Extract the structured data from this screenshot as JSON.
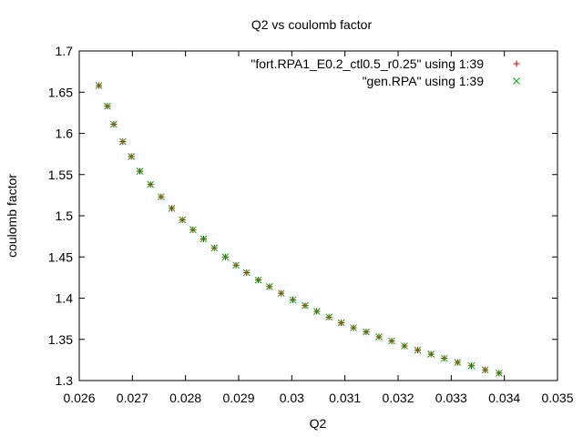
{
  "chart_data": {
    "type": "scatter",
    "title": "Q2 vs coulomb factor",
    "xlabel": "Q2",
    "ylabel": "coulomb factor",
    "xlim": [
      0.026,
      0.035
    ],
    "ylim": [
      1.3,
      1.7
    ],
    "xticks": [
      0.026,
      0.027,
      0.028,
      0.029,
      0.03,
      0.031,
      0.032,
      0.033,
      0.034,
      0.035
    ],
    "xtick_labels": [
      "0.026",
      "0.027",
      "0.028",
      "0.029",
      "0.03",
      "0.031",
      "0.032",
      "0.033",
      "0.034",
      "0.035"
    ],
    "yticks": [
      1.3,
      1.35,
      1.4,
      1.45,
      1.5,
      1.55,
      1.6,
      1.65,
      1.7
    ],
    "ytick_labels": [
      "1.3",
      "1.35",
      "1.4",
      "1.45",
      "1.5",
      "1.55",
      "1.6",
      "1.65",
      "1.7"
    ],
    "grid": false,
    "legend_position": "top-right",
    "series": [
      {
        "name": "\"fort.RPA1_E0.2_ctl0.5_r0.25\" using 1:39",
        "marker": "plus",
        "color": "#cc0000",
        "points": [
          [
            0.02637,
            1.658
          ],
          [
            0.02653,
            1.633
          ],
          [
            0.02665,
            1.611
          ],
          [
            0.02682,
            1.59
          ],
          [
            0.02698,
            1.572
          ],
          [
            0.02714,
            1.554
          ],
          [
            0.02734,
            1.538
          ],
          [
            0.02754,
            1.523
          ],
          [
            0.02774,
            1.509
          ],
          [
            0.02794,
            1.495
          ],
          [
            0.02814,
            1.483
          ],
          [
            0.02834,
            1.472
          ],
          [
            0.02854,
            1.461
          ],
          [
            0.02875,
            1.45
          ],
          [
            0.02895,
            1.44
          ],
          [
            0.02915,
            1.431
          ],
          [
            0.02937,
            1.422
          ],
          [
            0.02958,
            1.414
          ],
          [
            0.0298,
            1.406
          ],
          [
            0.03002,
            1.398
          ],
          [
            0.03025,
            1.391
          ],
          [
            0.03047,
            1.384
          ],
          [
            0.0307,
            1.377
          ],
          [
            0.03093,
            1.37
          ],
          [
            0.03116,
            1.364
          ],
          [
            0.0314,
            1.359
          ],
          [
            0.03164,
            1.353
          ],
          [
            0.03188,
            1.348
          ],
          [
            0.03212,
            1.342
          ],
          [
            0.03237,
            1.337
          ],
          [
            0.03262,
            1.332
          ],
          [
            0.03287,
            1.327
          ],
          [
            0.03312,
            1.322
          ],
          [
            0.03338,
            1.318
          ],
          [
            0.03364,
            1.313
          ],
          [
            0.0339,
            1.309
          ]
        ]
      },
      {
        "name": "\"gen.RPA\" using 1:39",
        "marker": "cross",
        "color": "#00aa00",
        "points": [
          [
            0.02637,
            1.658
          ],
          [
            0.02653,
            1.633
          ],
          [
            0.02665,
            1.611
          ],
          [
            0.02682,
            1.59
          ],
          [
            0.02698,
            1.572
          ],
          [
            0.02714,
            1.554
          ],
          [
            0.02734,
            1.538
          ],
          [
            0.02754,
            1.523
          ],
          [
            0.02774,
            1.509
          ],
          [
            0.02794,
            1.495
          ],
          [
            0.02814,
            1.483
          ],
          [
            0.02834,
            1.472
          ],
          [
            0.02854,
            1.461
          ],
          [
            0.02875,
            1.45
          ],
          [
            0.02895,
            1.44
          ],
          [
            0.02915,
            1.431
          ],
          [
            0.02937,
            1.422
          ],
          [
            0.02958,
            1.414
          ],
          [
            0.0298,
            1.406
          ],
          [
            0.03002,
            1.398
          ],
          [
            0.03025,
            1.391
          ],
          [
            0.03047,
            1.384
          ],
          [
            0.0307,
            1.377
          ],
          [
            0.03093,
            1.37
          ],
          [
            0.03116,
            1.364
          ],
          [
            0.0314,
            1.359
          ],
          [
            0.03164,
            1.353
          ],
          [
            0.03188,
            1.348
          ],
          [
            0.03212,
            1.342
          ],
          [
            0.03237,
            1.337
          ],
          [
            0.03262,
            1.332
          ],
          [
            0.03287,
            1.327
          ],
          [
            0.03312,
            1.322
          ],
          [
            0.03338,
            1.318
          ],
          [
            0.03364,
            1.313
          ],
          [
            0.0339,
            1.309
          ]
        ]
      }
    ]
  }
}
